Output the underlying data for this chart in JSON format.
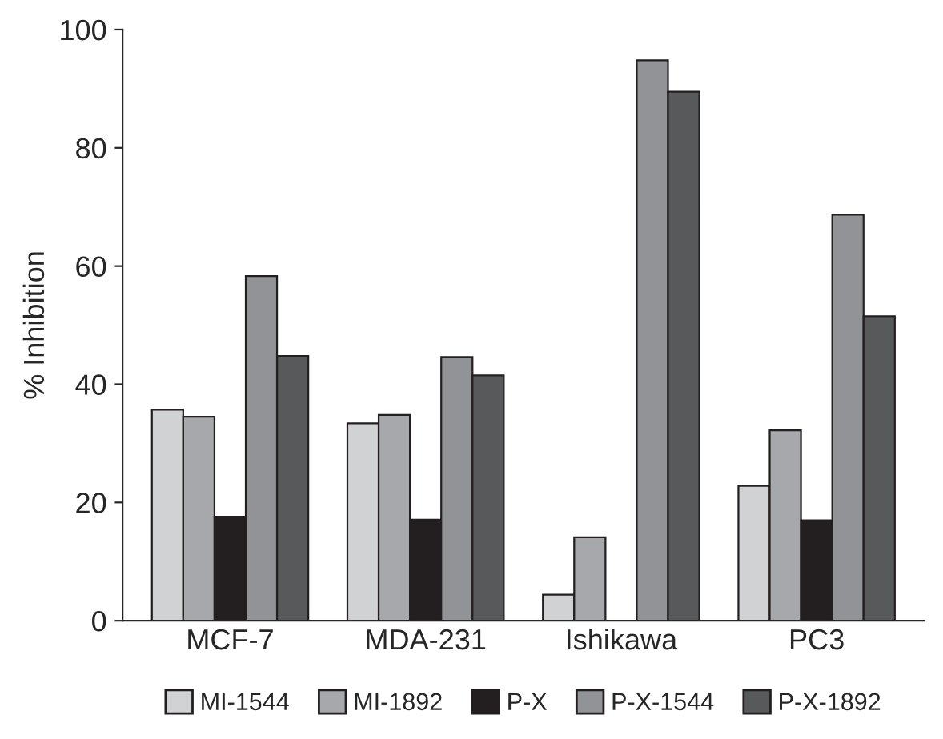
{
  "chart_data": {
    "type": "bar",
    "ylabel": "% Inhibition",
    "categories": [
      "MCF-7",
      "MDA-231",
      "Ishikawa",
      "PC3"
    ],
    "series": [
      {
        "name": "MI-1544",
        "color": "#d1d2d4",
        "values": [
          35.7,
          33.4,
          4.4,
          22.8
        ]
      },
      {
        "name": "MI-1892",
        "color": "#a7a8ab",
        "values": [
          34.5,
          34.8,
          14.1,
          32.2
        ]
      },
      {
        "name": "P-X",
        "color": "#231f20",
        "values": [
          17.6,
          17.1,
          null,
          17.0
        ]
      },
      {
        "name": "P-X-1544",
        "color": "#929396",
        "values": [
          58.3,
          44.6,
          94.8,
          68.7
        ]
      },
      {
        "name": "P-X-1892",
        "color": "#58595b",
        "values": [
          44.8,
          41.5,
          89.5,
          51.5
        ]
      }
    ],
    "ylim": [
      0,
      100
    ],
    "yticks": [
      0,
      20,
      40,
      60,
      80,
      100
    ],
    "grid": false,
    "legend": "bottom"
  }
}
